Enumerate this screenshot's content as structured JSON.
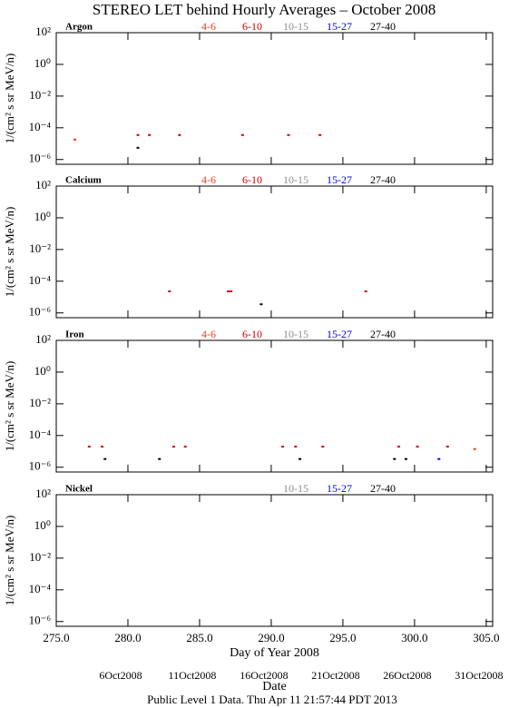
{
  "title": "STEREO LET behind Hourly Averages – October 2008",
  "footer": "Public Level 1 Data. Thu Apr 11 21:57:44 PDT 2013",
  "chart_data": [
    {
      "type": "scatter",
      "label": "Argon",
      "ylabel": "1/(cm² s sr MeV/n)",
      "log_y": true,
      "xlim": [
        275,
        305.45
      ],
      "xticks": [
        275,
        280,
        285,
        290,
        295,
        300,
        305
      ],
      "ylim": [
        5e-07,
        100
      ],
      "yticks": [
        {
          "value": 100,
          "label": "10²"
        },
        {
          "value": 1,
          "label": "10⁰"
        },
        {
          "value": 0.01,
          "label": "10⁻²"
        },
        {
          "value": 0.0001,
          "label": "10⁻⁴"
        },
        {
          "value": 1e-06,
          "label": "10⁻⁶"
        }
      ],
      "series": [
        {
          "name": "4-6",
          "color": "#e8401c",
          "x": [
            276.3
          ],
          "values": [
            1.8e-05
          ]
        },
        {
          "name": "6-10",
          "color": "#d00000",
          "x": [
            280.7,
            281.5,
            283.6,
            288.0,
            291.2,
            293.4
          ],
          "values": [
            3.5e-05,
            3.5e-05,
            3.5e-05,
            3.5e-05,
            3.5e-05,
            3.5e-05
          ]
        },
        {
          "name": "10-15",
          "color": "#8c8c8c",
          "x": [],
          "values": []
        },
        {
          "name": "15-27",
          "color": "#0000e0",
          "x": [],
          "values": []
        },
        {
          "name": "27-40",
          "color": "#000000",
          "x": [
            280.7
          ],
          "values": [
            5.5e-06
          ]
        }
      ]
    },
    {
      "type": "scatter",
      "label": "Calcium",
      "ylabel": "1/(cm² s sr MeV/n)",
      "log_y": true,
      "xlim": [
        275,
        305.45
      ],
      "xticks": [
        275,
        280,
        285,
        290,
        295,
        300,
        305
      ],
      "ylim": [
        5e-07,
        100
      ],
      "yticks": [
        {
          "value": 100,
          "label": "10²"
        },
        {
          "value": 1,
          "label": "10⁰"
        },
        {
          "value": 0.01,
          "label": "10⁻²"
        },
        {
          "value": 0.0001,
          "label": "10⁻⁴"
        },
        {
          "value": 1e-06,
          "label": "10⁻⁶"
        }
      ],
      "series": [
        {
          "name": "4-6",
          "color": "#e8401c",
          "x": [],
          "values": []
        },
        {
          "name": "6-10",
          "color": "#d00000",
          "x": [
            282.9,
            287.0,
            287.2,
            296.6
          ],
          "values": [
            2.3e-05,
            2.3e-05,
            2.3e-05,
            2.3e-05
          ]
        },
        {
          "name": "10-15",
          "color": "#8c8c8c",
          "x": [],
          "values": []
        },
        {
          "name": "15-27",
          "color": "#0000e0",
          "x": [],
          "values": []
        },
        {
          "name": "27-40",
          "color": "#000000",
          "x": [
            289.3
          ],
          "values": [
            3.5e-06
          ]
        }
      ]
    },
    {
      "type": "scatter",
      "label": "Iron",
      "ylabel": "1/(cm² s sr MeV/n)",
      "log_y": true,
      "xlim": [
        275,
        305.45
      ],
      "xticks": [
        275,
        280,
        285,
        290,
        295,
        300,
        305
      ],
      "ylim": [
        5e-07,
        100
      ],
      "yticks": [
        {
          "value": 100,
          "label": "10²"
        },
        {
          "value": 1,
          "label": "10⁰"
        },
        {
          "value": 0.01,
          "label": "10⁻²"
        },
        {
          "value": 0.0001,
          "label": "10⁻⁴"
        },
        {
          "value": 1e-06,
          "label": "10⁻⁶"
        }
      ],
      "series": [
        {
          "name": "4-6",
          "color": "#e8401c",
          "x": [
            304.2
          ],
          "values": [
            1.4e-05
          ]
        },
        {
          "name": "6-10",
          "color": "#d00000",
          "x": [
            277.3,
            278.2,
            283.2,
            284.0,
            290.8,
            291.7,
            293.6,
            298.9,
            300.2,
            302.3
          ],
          "values": [
            2e-05,
            2e-05,
            2e-05,
            2e-05,
            2e-05,
            2e-05,
            2e-05,
            2e-05,
            2e-05,
            2e-05
          ]
        },
        {
          "name": "10-15",
          "color": "#8c8c8c",
          "x": [],
          "values": []
        },
        {
          "name": "15-27",
          "color": "#0000e0",
          "x": [
            301.7
          ],
          "values": [
            3.3e-06
          ]
        },
        {
          "name": "27-40",
          "color": "#000000",
          "x": [
            278.4,
            282.2,
            292.0,
            298.6,
            299.4
          ],
          "values": [
            3.3e-06,
            3.3e-06,
            3.3e-06,
            3.3e-06,
            3.3e-06
          ]
        }
      ]
    },
    {
      "type": "scatter",
      "label": "Nickel",
      "ylabel": "1/(cm² s sr MeV/n)",
      "log_y": true,
      "xlim": [
        275,
        305.45
      ],
      "xticks": [
        {
          "value": 275,
          "label": "275.0"
        },
        {
          "value": 280,
          "label": "280.0"
        },
        {
          "value": 285,
          "label": "285.0"
        },
        {
          "value": 290,
          "label": "290.0"
        },
        {
          "value": 295,
          "label": "295.0"
        },
        {
          "value": 300,
          "label": "300.0"
        },
        {
          "value": 305,
          "label": "305.0"
        }
      ],
      "xlabel": "Day of Year 2008",
      "x2label": "Date",
      "x2ticks": [
        {
          "value": 280,
          "label": "6Oct2008"
        },
        {
          "value": 285,
          "label": "11Oct2008"
        },
        {
          "value": 290,
          "label": "16Oct2008"
        },
        {
          "value": 295,
          "label": "21Oct2008"
        },
        {
          "value": 300,
          "label": "26Oct2008"
        },
        {
          "value": 305,
          "label": "31Oct2008"
        }
      ],
      "ylim": [
        5e-07,
        100
      ],
      "yticks": [
        {
          "value": 100,
          "label": "10²"
        },
        {
          "value": 1,
          "label": "10⁰"
        },
        {
          "value": 0.01,
          "label": "10⁻²"
        },
        {
          "value": 0.0001,
          "label": "10⁻⁴"
        },
        {
          "value": 1e-06,
          "label": "10⁻⁶"
        }
      ],
      "series": [
        {
          "name": "10-15",
          "color": "#8c8c8c",
          "x": [],
          "values": []
        },
        {
          "name": "15-27",
          "color": "#0000e0",
          "x": [],
          "values": []
        },
        {
          "name": "27-40",
          "color": "#000000",
          "x": [],
          "values": []
        }
      ]
    }
  ]
}
